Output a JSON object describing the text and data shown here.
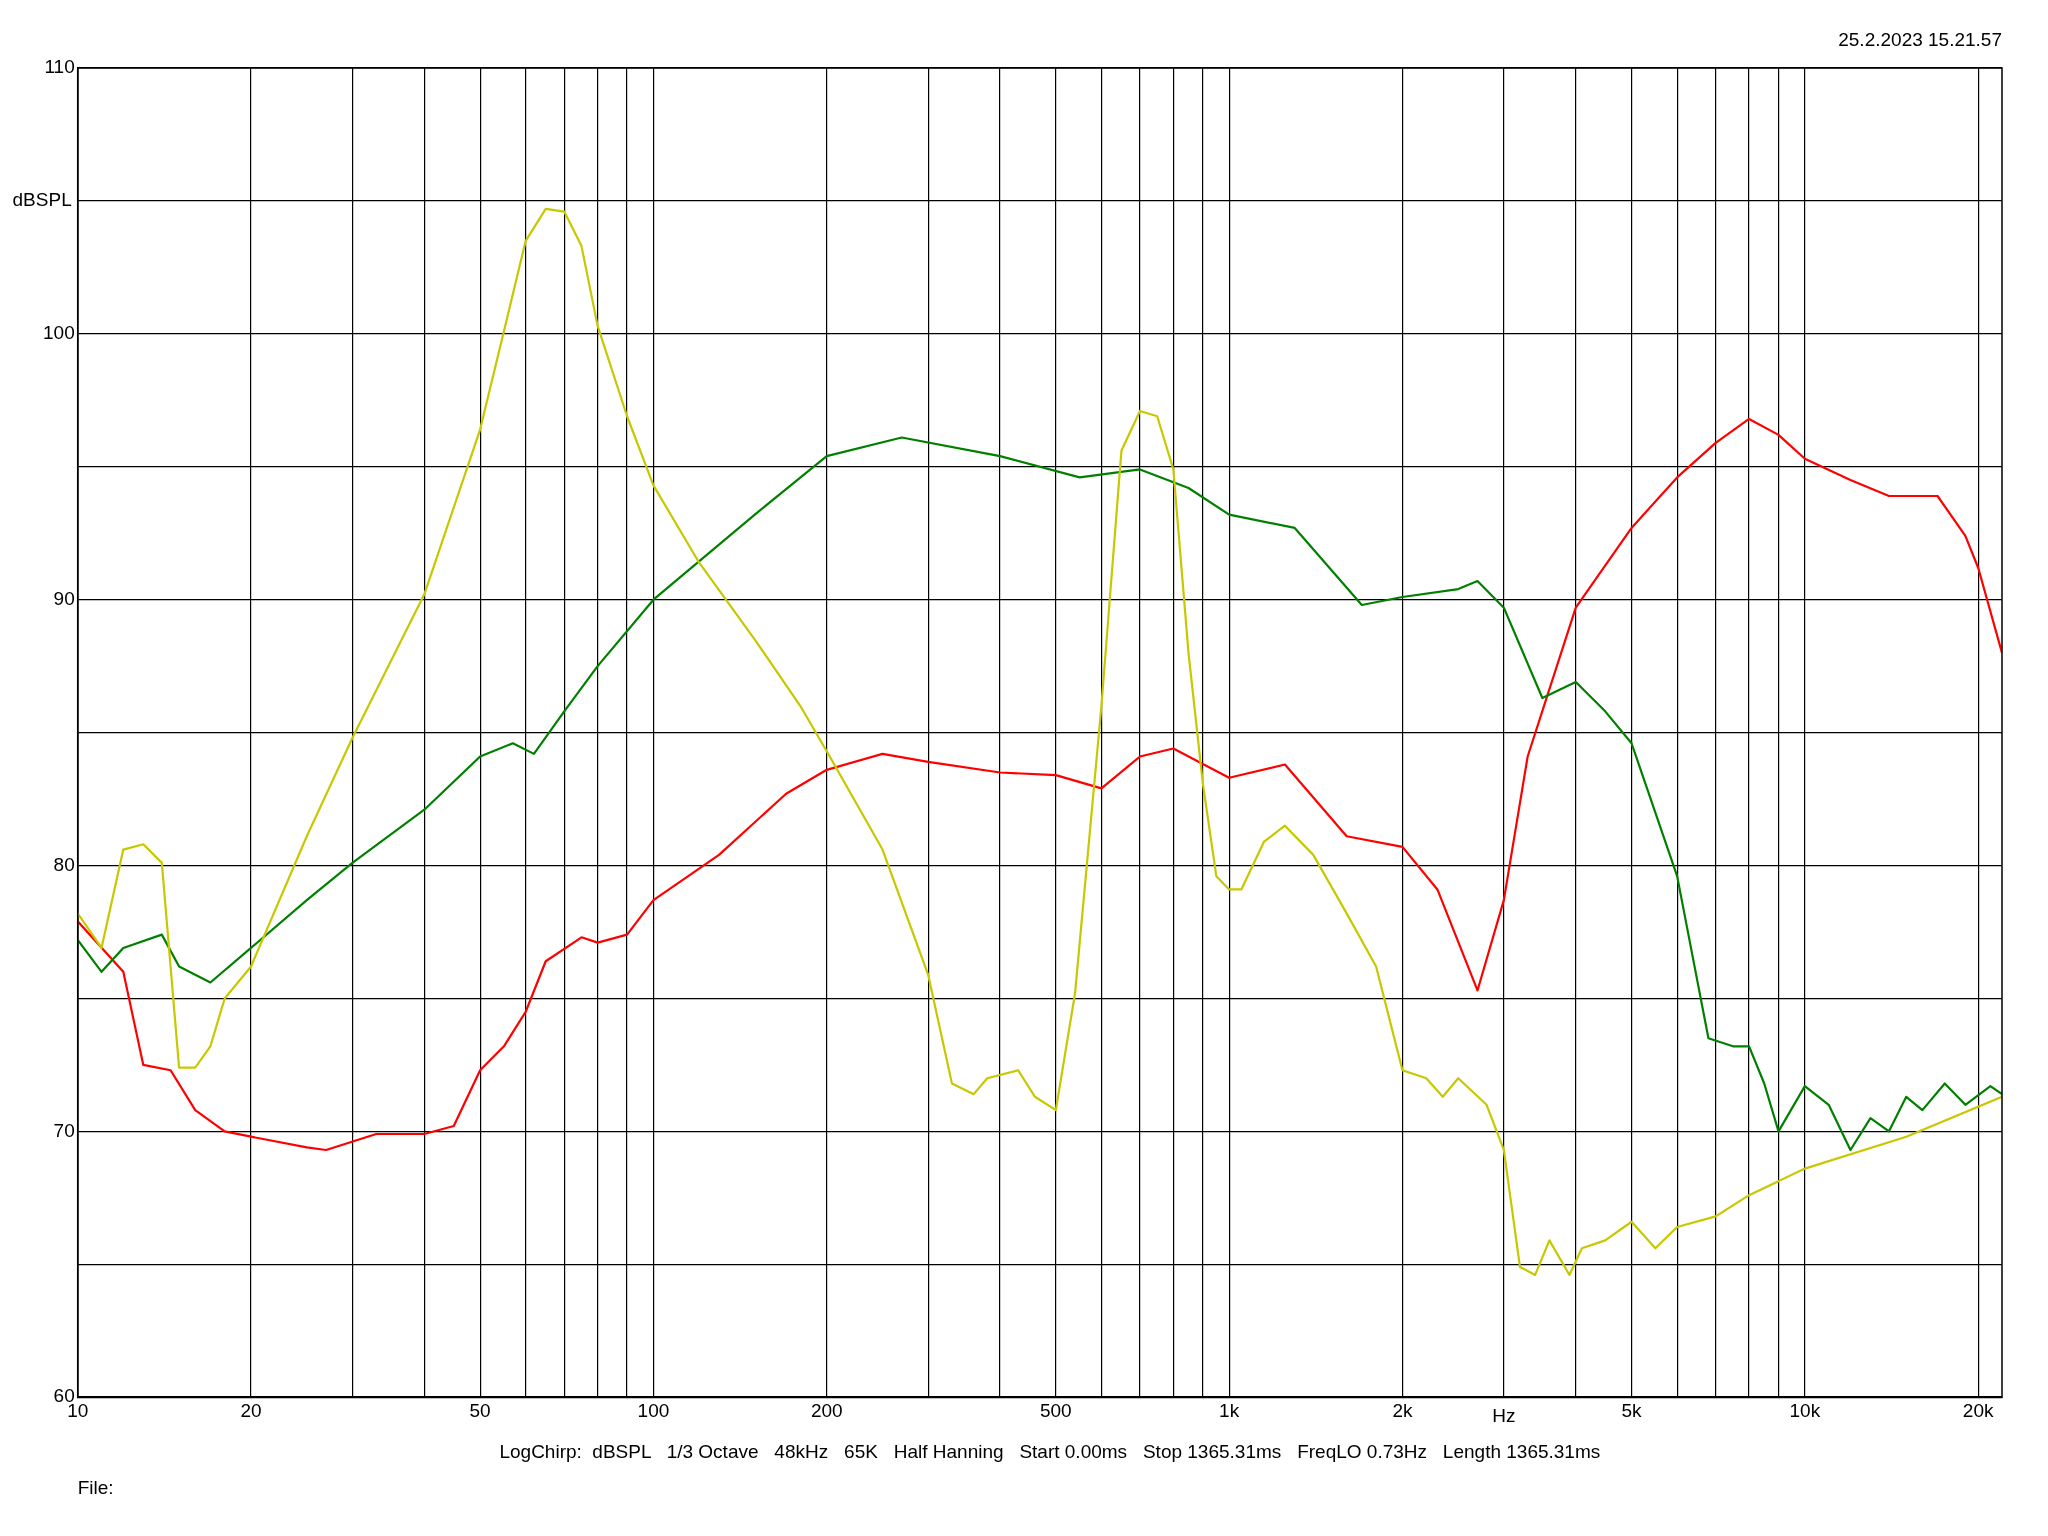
{
  "chart_data": {
    "type": "line",
    "xlabel": "Hz",
    "ylabel": "dBSPL",
    "annotations": [
      "25.2.2023 15.21.57",
      "LogChirp:  dBSPL   1/3 Octave   48kHz   65K   Half Hanning   Start 0.00ms   Stop 1365.31ms   FreqLO 0.73Hz   Length 1365.31ms",
      "File:"
    ],
    "log": "x",
    "xlim": [
      10,
      22000
    ],
    "ylim": [
      60,
      110
    ],
    "xticks": [
      10,
      {
        "value": 20,
        "label": "20"
      },
      {
        "value": 30,
        "label": null
      },
      {
        "value": 40,
        "label": null
      },
      50,
      {
        "value": 60,
        "label": null
      },
      {
        "value": 70,
        "label": null
      },
      {
        "value": 80,
        "label": null
      },
      {
        "value": 90,
        "label": null
      },
      100,
      200,
      {
        "value": 300,
        "label": null
      },
      {
        "value": 400,
        "label": null
      },
      500,
      {
        "value": 600,
        "label": null
      },
      {
        "value": 700,
        "label": null
      },
      {
        "value": 800,
        "label": null
      },
      {
        "value": 900,
        "label": null
      },
      {
        "value": 1000,
        "label": "1k"
      },
      {
        "value": 2000,
        "label": "2k"
      },
      {
        "value": 3000,
        "label": null
      },
      {
        "value": 4000,
        "label": null
      },
      {
        "value": 5000,
        "label": "5k"
      },
      {
        "value": 6000,
        "label": null
      },
      {
        "value": 7000,
        "label": null
      },
      {
        "value": 8000,
        "label": null
      },
      {
        "value": 9000,
        "label": null
      },
      {
        "value": 10000,
        "label": "10k"
      },
      {
        "value": 20000,
        "label": "20k"
      }
    ],
    "yticks": [
      60,
      {
        "value": 65,
        "label": null
      },
      70,
      {
        "value": 75,
        "label": null
      },
      80,
      {
        "value": 85,
        "label": null
      },
      90,
      {
        "value": 95,
        "label": null
      },
      100,
      {
        "value": 105,
        "label": null
      },
      110
    ],
    "grid": true,
    "legend": false,
    "marker": "none",
    "line_style": "solid",
    "series": [
      {
        "color": "#c8c800",
        "x": [
          10,
          11,
          12,
          13,
          14,
          15,
          16,
          17,
          18,
          20,
          25,
          30,
          40,
          50,
          55,
          60,
          65,
          70,
          75,
          80,
          90,
          100,
          120,
          150,
          180,
          200,
          250,
          300,
          330,
          360,
          380,
          430,
          460,
          500,
          540,
          600,
          650,
          700,
          750,
          800,
          850,
          900,
          950,
          1000,
          1050,
          1150,
          1250,
          1400,
          1600,
          1800,
          2000,
          2200,
          2350,
          2500,
          2800,
          3000,
          3200,
          3400,
          3600,
          3900,
          4100,
          4500,
          5000,
          5500,
          6000,
          7000,
          8000,
          10000,
          15000,
          22000
        ],
        "values": [
          78.2,
          76.9,
          80.6,
          80.8,
          80.1,
          72.4,
          72.4,
          73.2,
          75.0,
          76.2,
          81.1,
          84.8,
          90.2,
          96.4,
          100.1,
          103.5,
          104.7,
          104.6,
          103.3,
          100.3,
          96.9,
          94.3,
          91.4,
          88.5,
          86.0,
          84.3,
          80.6,
          75.9,
          71.8,
          71.4,
          72.0,
          72.3,
          71.3,
          70.8,
          75.2,
          86.0,
          95.6,
          97.1,
          96.9,
          94.9,
          88.0,
          83.1,
          79.6,
          79.1,
          79.1,
          80.9,
          81.5,
          80.4,
          78.2,
          76.2,
          72.3,
          72.0,
          71.3,
          72.0,
          71.0,
          69.3,
          64.9,
          64.6,
          65.9,
          64.6,
          65.6,
          65.9,
          66.6,
          65.6,
          66.4,
          66.8,
          67.6,
          68.6,
          69.8,
          71.3
        ]
      },
      {
        "color": "#008000",
        "x": [
          10,
          11,
          12,
          14,
          15,
          17,
          20,
          25,
          30,
          40,
          50,
          57,
          62,
          70,
          80,
          100,
          150,
          200,
          270,
          400,
          550,
          700,
          850,
          1000,
          1300,
          1700,
          2000,
          2500,
          2700,
          3000,
          3500,
          4000,
          4500,
          5000,
          6000,
          6800,
          7500,
          8000,
          8500,
          9000,
          10000,
          11000,
          12000,
          13000,
          14000,
          15000,
          16000,
          17500,
          19000,
          21000,
          22000
        ],
        "values": [
          77.2,
          76.0,
          76.9,
          77.4,
          76.2,
          75.6,
          76.9,
          78.7,
          80.1,
          82.1,
          84.1,
          84.6,
          84.2,
          85.8,
          87.5,
          90.0,
          93.2,
          95.4,
          96.1,
          95.4,
          94.6,
          94.9,
          94.2,
          93.2,
          92.7,
          89.8,
          90.1,
          90.4,
          90.7,
          89.7,
          86.3,
          86.9,
          85.8,
          84.6,
          79.6,
          73.5,
          73.2,
          73.2,
          71.8,
          70.0,
          71.7,
          71.0,
          69.3,
          70.5,
          70.0,
          71.3,
          70.8,
          71.8,
          71.0,
          71.7,
          71.4
        ]
      },
      {
        "color": "#ff0000",
        "x": [
          10,
          12,
          13,
          14.5,
          16,
          18,
          20,
          25,
          27,
          33,
          40,
          45,
          50,
          55,
          60,
          65,
          75,
          80,
          90,
          100,
          130,
          170,
          200,
          250,
          300,
          400,
          500,
          600,
          700,
          800,
          1000,
          1250,
          1600,
          2000,
          2300,
          2700,
          3000,
          3300,
          4000,
          5000,
          6000,
          7000,
          8000,
          9000,
          10000,
          12000,
          14000,
          17000,
          19000,
          20000,
          22000
        ],
        "values": [
          77.9,
          76.0,
          72.5,
          72.3,
          70.8,
          70.0,
          69.8,
          69.4,
          69.3,
          69.9,
          69.9,
          70.2,
          72.3,
          73.2,
          74.5,
          76.4,
          77.3,
          77.1,
          77.4,
          78.7,
          80.4,
          82.7,
          83.6,
          84.2,
          83.9,
          83.5,
          83.4,
          82.9,
          84.1,
          84.4,
          83.3,
          83.8,
          81.1,
          80.7,
          79.1,
          75.3,
          78.7,
          84.1,
          89.7,
          92.7,
          94.6,
          95.9,
          96.8,
          96.2,
          95.3,
          94.5,
          93.9,
          93.9,
          92.4,
          91.2,
          88.0
        ]
      }
    ]
  }
}
